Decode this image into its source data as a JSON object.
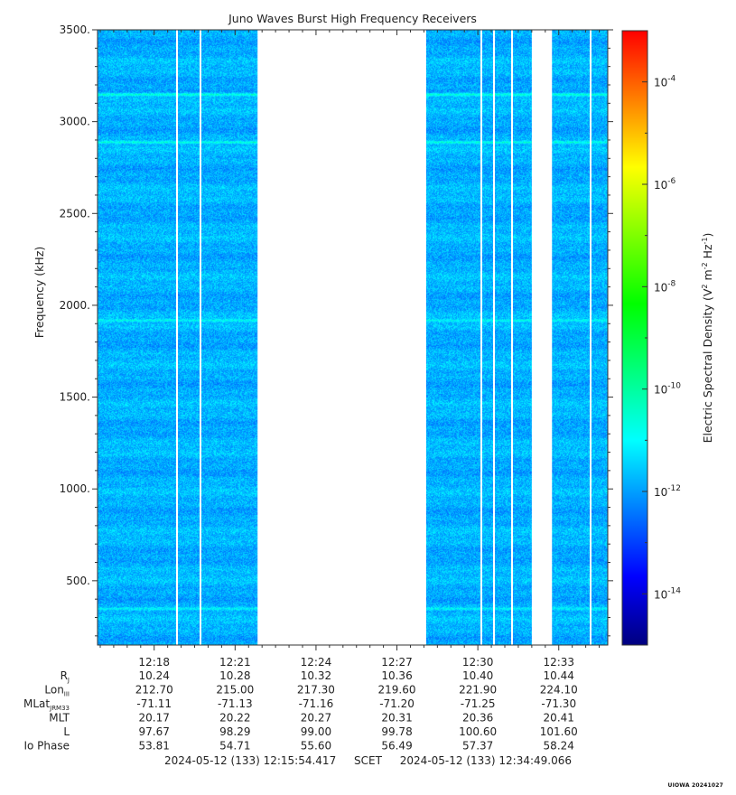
{
  "chart_data": {
    "type": "heatmap",
    "title": "Juno Waves Burst High Frequency Receivers",
    "ylabel": "Frequency (kHz)",
    "colorbar_label": "Electric Spectral Density (V² m⁻² Hz⁻¹)",
    "colorbar_label_parts": {
      "prefix": "Electric Spectral Density (V",
      "e1": "2",
      "m": " m",
      "e2": "-2",
      "hz": " Hz",
      "e3": "-1",
      "suffix": ")"
    },
    "ylim": [
      150,
      3500
    ],
    "yticks": [
      500,
      1000,
      1500,
      2000,
      2500,
      3000,
      3500
    ],
    "ytick_labels": [
      "500.",
      "1000.",
      "1500.",
      "2000.",
      "2500.",
      "3000.",
      "3500."
    ],
    "xlim": [
      "12:15:54",
      "12:34:49"
    ],
    "xticks": [
      "12:18",
      "12:21",
      "12:24",
      "12:27",
      "12:30",
      "12:33"
    ],
    "colorbar_scale": "log",
    "colorbar_range": [
      -15,
      -3
    ],
    "colorbar_ticks": [
      {
        "base": "10",
        "exp": "-4"
      },
      {
        "base": "10",
        "exp": "-6"
      },
      {
        "base": "10",
        "exp": "-8"
      },
      {
        "base": "10",
        "exp": "-10"
      },
      {
        "base": "10",
        "exp": "-12"
      },
      {
        "base": "10",
        "exp": "-14"
      }
    ],
    "colormap": [
      "#00007f",
      "#0000ff",
      "#007fff",
      "#00ffff",
      "#00ff7f",
      "#00ff00",
      "#7fff00",
      "#ffff00",
      "#ff7f00",
      "#ff0000"
    ],
    "background_level_log10": -11.8,
    "data_gaps": [
      {
        "start": "12:21:50",
        "end": "12:28:05"
      },
      {
        "start": "12:32:00",
        "end": "12:32:45"
      }
    ],
    "emission_lines_khz": [
      {
        "freq": 3150,
        "level_log10": -10.4
      },
      {
        "freq": 2890,
        "level_log10": -10.6
      },
      {
        "freq": 1920,
        "level_log10": -10.9
      },
      {
        "freq": 350,
        "level_log10": -11.0
      }
    ],
    "ephemeris": {
      "rows": [
        {
          "label": "R",
          "sub": "J",
          "values": [
            "10.24",
            "10.28",
            "10.32",
            "10.36",
            "10.40",
            "10.44"
          ]
        },
        {
          "label": "Lon",
          "sub": "III",
          "values": [
            "212.70",
            "215.00",
            "217.30",
            "219.60",
            "221.90",
            "224.10"
          ]
        },
        {
          "label": "MLat",
          "sub": "JRM33",
          "values": [
            "-71.11",
            "-71.13",
            "-71.16",
            "-71.20",
            "-71.25",
            "-71.30"
          ]
        },
        {
          "label": "MLT",
          "sub": "",
          "values": [
            "20.17",
            "20.22",
            "20.27",
            "20.31",
            "20.36",
            "20.41"
          ]
        },
        {
          "label": "L",
          "sub": "",
          "values": [
            "97.67",
            "98.29",
            "99.00",
            "99.78",
            "100.60",
            "101.60"
          ]
        },
        {
          "label": "Io Phase",
          "sub": "",
          "values": [
            "53.81",
            "54.71",
            "55.60",
            "56.49",
            "57.37",
            "58.24"
          ]
        }
      ]
    }
  },
  "footer": {
    "start": "2024-05-12 (133) 12:15:54.417",
    "mid": "SCET",
    "end": "2024-05-12 (133) 12:34:49.066"
  },
  "stamp": "UIOWA 20241027"
}
